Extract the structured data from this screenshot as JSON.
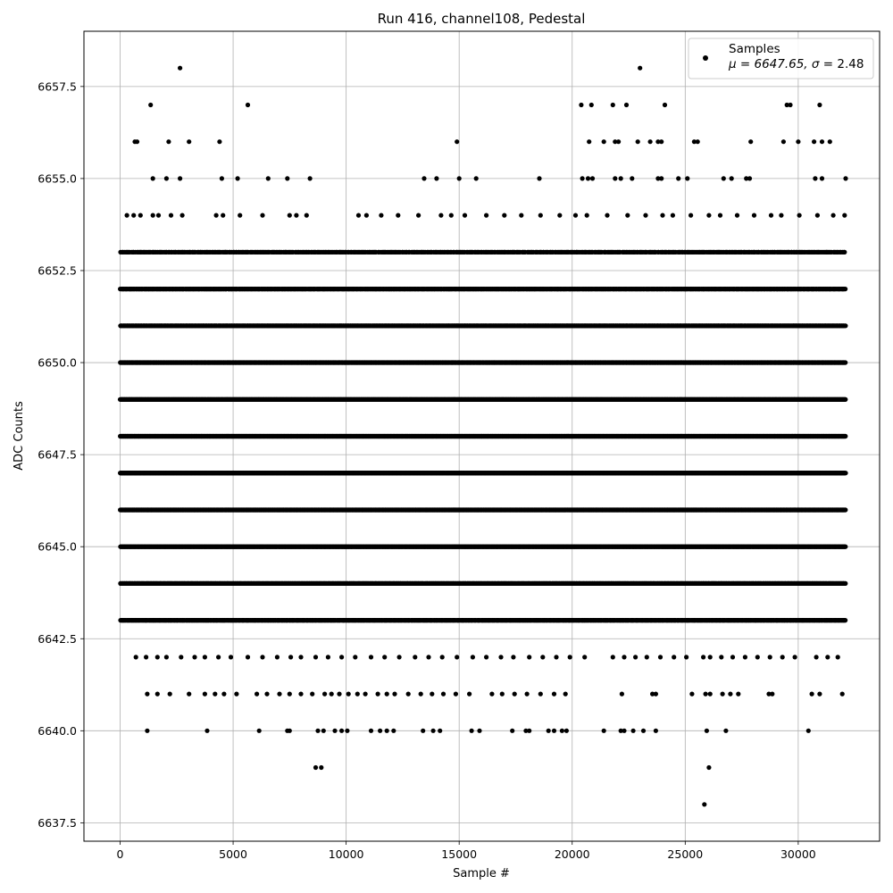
{
  "chart_data": {
    "type": "scatter",
    "title": "Run 416, channel108, Pedestal",
    "xlabel": "Sample #",
    "ylabel": "ADC Counts",
    "xlim": [
      -1600,
      33600
    ],
    "ylim": [
      6637.0,
      6659.0
    ],
    "xticks": [
      0,
      5000,
      10000,
      15000,
      20000,
      25000,
      30000
    ],
    "yticks": [
      6637.5,
      6640.0,
      6642.5,
      6645.0,
      6647.5,
      6650.0,
      6652.5,
      6655.0,
      6657.5
    ],
    "grid": true,
    "legend": {
      "placement": "top-right",
      "entry": "Samples",
      "stats_prefix": "μ = 6647.65, ",
      "stats_sigma": "σ",
      "stats_suffix": " = 2.48"
    },
    "series": [
      {
        "name": "Samples",
        "color": "#000000",
        "x_range": [
          0,
          32100
        ],
        "bands": [
          {
            "y": 6643,
            "count": 900,
            "xmax": 32100
          },
          {
            "y": 6644,
            "count": 1200,
            "xmax": 32100
          },
          {
            "y": 6645,
            "count": 1600,
            "xmax": 32100
          },
          {
            "y": 6646,
            "count": 2000,
            "xmax": 32100
          },
          {
            "y": 6647,
            "count": 2200,
            "xmax": 32100
          },
          {
            "y": 6648,
            "count": 2200,
            "xmax": 32100
          },
          {
            "y": 6649,
            "count": 2000,
            "xmax": 32100
          },
          {
            "y": 6650,
            "count": 1600,
            "xmax": 32100
          },
          {
            "y": 6651,
            "count": 1200,
            "xmax": 32100
          },
          {
            "y": 6652,
            "count": 900,
            "xmax": 32100
          },
          {
            "y": 6653,
            "count": 550,
            "xmax": 32100
          }
        ],
        "points": [
          [
            2650,
            6658
          ],
          [
            23000,
            6658
          ],
          [
            1350,
            6657
          ],
          [
            5650,
            6657
          ],
          [
            20400,
            6657
          ],
          [
            20850,
            6657
          ],
          [
            21800,
            6657
          ],
          [
            22400,
            6657
          ],
          [
            24100,
            6657
          ],
          [
            29500,
            6657
          ],
          [
            29650,
            6657
          ],
          [
            30950,
            6657
          ],
          [
            650,
            6656
          ],
          [
            750,
            6656
          ],
          [
            2150,
            6656
          ],
          [
            3050,
            6656
          ],
          [
            4400,
            6656
          ],
          [
            14900,
            6656
          ],
          [
            20750,
            6656
          ],
          [
            21400,
            6656
          ],
          [
            21900,
            6656
          ],
          [
            22050,
            6656
          ],
          [
            22900,
            6656
          ],
          [
            23450,
            6656
          ],
          [
            23800,
            6656
          ],
          [
            23950,
            6656
          ],
          [
            25400,
            6656
          ],
          [
            25550,
            6656
          ],
          [
            27900,
            6656
          ],
          [
            29350,
            6656
          ],
          [
            30000,
            6656
          ],
          [
            30700,
            6656
          ],
          [
            31050,
            6656
          ],
          [
            31400,
            6656
          ],
          [
            1450,
            6655
          ],
          [
            2050,
            6655
          ],
          [
            2650,
            6655
          ],
          [
            4500,
            6655
          ],
          [
            5200,
            6655
          ],
          [
            6550,
            6655
          ],
          [
            7400,
            6655
          ],
          [
            8400,
            6655
          ],
          [
            13450,
            6655
          ],
          [
            14000,
            6655
          ],
          [
            15000,
            6655
          ],
          [
            15750,
            6655
          ],
          [
            18550,
            6655
          ],
          [
            20450,
            6655
          ],
          [
            20700,
            6655
          ],
          [
            20900,
            6655
          ],
          [
            21900,
            6655
          ],
          [
            22150,
            6655
          ],
          [
            22650,
            6655
          ],
          [
            23800,
            6655
          ],
          [
            23950,
            6655
          ],
          [
            24700,
            6655
          ],
          [
            25100,
            6655
          ],
          [
            26700,
            6655
          ],
          [
            27050,
            6655
          ],
          [
            27700,
            6655
          ],
          [
            27850,
            6655
          ],
          [
            30750,
            6655
          ],
          [
            31050,
            6655
          ],
          [
            32100,
            6655
          ],
          [
            300,
            6654
          ],
          [
            600,
            6654
          ],
          [
            900,
            6654
          ],
          [
            1450,
            6654
          ],
          [
            1700,
            6654
          ],
          [
            2250,
            6654
          ],
          [
            2750,
            6654
          ],
          [
            4250,
            6654
          ],
          [
            4550,
            6654
          ],
          [
            5300,
            6654
          ],
          [
            6300,
            6654
          ],
          [
            7500,
            6654
          ],
          [
            7800,
            6654
          ],
          [
            8250,
            6654
          ],
          [
            10550,
            6654
          ],
          [
            10900,
            6654
          ],
          [
            11550,
            6654
          ],
          [
            12300,
            6654
          ],
          [
            13200,
            6654
          ],
          [
            14200,
            6654
          ],
          [
            14650,
            6654
          ],
          [
            15250,
            6654
          ],
          [
            16200,
            6654
          ],
          [
            17000,
            6654
          ],
          [
            17750,
            6654
          ],
          [
            18600,
            6654
          ],
          [
            19450,
            6654
          ],
          [
            20150,
            6654
          ],
          [
            20650,
            6654
          ],
          [
            21550,
            6654
          ],
          [
            22450,
            6654
          ],
          [
            23250,
            6654
          ],
          [
            24000,
            6654
          ],
          [
            24450,
            6654
          ],
          [
            25250,
            6654
          ],
          [
            26050,
            6654
          ],
          [
            26550,
            6654
          ],
          [
            27300,
            6654
          ],
          [
            28050,
            6654
          ],
          [
            28800,
            6654
          ],
          [
            29250,
            6654
          ],
          [
            30050,
            6654
          ],
          [
            30850,
            6654
          ],
          [
            31550,
            6654
          ],
          [
            32050,
            6654
          ],
          [
            700,
            6642
          ],
          [
            1150,
            6642
          ],
          [
            1650,
            6642
          ],
          [
            2050,
            6642
          ],
          [
            2700,
            6642
          ],
          [
            3300,
            6642
          ],
          [
            3750,
            6642
          ],
          [
            4350,
            6642
          ],
          [
            4900,
            6642
          ],
          [
            5650,
            6642
          ],
          [
            6300,
            6642
          ],
          [
            6950,
            6642
          ],
          [
            7550,
            6642
          ],
          [
            8000,
            6642
          ],
          [
            8650,
            6642
          ],
          [
            9200,
            6642
          ],
          [
            9800,
            6642
          ],
          [
            10400,
            6642
          ],
          [
            11100,
            6642
          ],
          [
            11700,
            6642
          ],
          [
            12350,
            6642
          ],
          [
            13050,
            6642
          ],
          [
            13650,
            6642
          ],
          [
            14250,
            6642
          ],
          [
            14900,
            6642
          ],
          [
            15600,
            6642
          ],
          [
            16200,
            6642
          ],
          [
            16850,
            6642
          ],
          [
            17400,
            6642
          ],
          [
            18100,
            6642
          ],
          [
            18700,
            6642
          ],
          [
            19300,
            6642
          ],
          [
            19900,
            6642
          ],
          [
            20550,
            6642
          ],
          [
            21800,
            6642
          ],
          [
            22300,
            6642
          ],
          [
            22800,
            6642
          ],
          [
            23300,
            6642
          ],
          [
            23900,
            6642
          ],
          [
            24500,
            6642
          ],
          [
            25050,
            6642
          ],
          [
            25800,
            6642
          ],
          [
            26100,
            6642
          ],
          [
            26600,
            6642
          ],
          [
            27100,
            6642
          ],
          [
            27650,
            6642
          ],
          [
            28200,
            6642
          ],
          [
            28750,
            6642
          ],
          [
            29300,
            6642
          ],
          [
            29850,
            6642
          ],
          [
            30800,
            6642
          ],
          [
            31300,
            6642
          ],
          [
            31750,
            6642
          ],
          [
            1200,
            6641
          ],
          [
            1650,
            6641
          ],
          [
            2200,
            6641
          ],
          [
            3050,
            6641
          ],
          [
            3750,
            6641
          ],
          [
            4200,
            6641
          ],
          [
            4600,
            6641
          ],
          [
            5150,
            6641
          ],
          [
            6050,
            6641
          ],
          [
            6500,
            6641
          ],
          [
            7050,
            6641
          ],
          [
            7500,
            6641
          ],
          [
            8000,
            6641
          ],
          [
            8500,
            6641
          ],
          [
            9050,
            6641
          ],
          [
            9350,
            6641
          ],
          [
            9700,
            6641
          ],
          [
            10100,
            6641
          ],
          [
            10500,
            6641
          ],
          [
            10850,
            6641
          ],
          [
            11400,
            6641
          ],
          [
            11800,
            6641
          ],
          [
            12150,
            6641
          ],
          [
            12750,
            6641
          ],
          [
            13300,
            6641
          ],
          [
            13800,
            6641
          ],
          [
            14300,
            6641
          ],
          [
            14850,
            6641
          ],
          [
            15450,
            6641
          ],
          [
            16450,
            6641
          ],
          [
            16900,
            6641
          ],
          [
            17450,
            6641
          ],
          [
            18000,
            6641
          ],
          [
            18600,
            6641
          ],
          [
            19200,
            6641
          ],
          [
            19700,
            6641
          ],
          [
            22200,
            6641
          ],
          [
            23550,
            6641
          ],
          [
            23700,
            6641
          ],
          [
            25300,
            6641
          ],
          [
            25900,
            6641
          ],
          [
            26100,
            6641
          ],
          [
            26650,
            6641
          ],
          [
            27000,
            6641
          ],
          [
            27350,
            6641
          ],
          [
            28700,
            6641
          ],
          [
            28850,
            6641
          ],
          [
            30600,
            6641
          ],
          [
            30950,
            6641
          ],
          [
            31950,
            6641
          ],
          [
            1200,
            6640
          ],
          [
            3850,
            6640
          ],
          [
            6150,
            6640
          ],
          [
            7400,
            6640
          ],
          [
            7500,
            6640
          ],
          [
            8750,
            6640
          ],
          [
            9000,
            6640
          ],
          [
            9500,
            6640
          ],
          [
            9800,
            6640
          ],
          [
            10050,
            6640
          ],
          [
            11100,
            6640
          ],
          [
            11500,
            6640
          ],
          [
            11800,
            6640
          ],
          [
            12100,
            6640
          ],
          [
            13400,
            6640
          ],
          [
            13850,
            6640
          ],
          [
            14150,
            6640
          ],
          [
            15550,
            6640
          ],
          [
            15900,
            6640
          ],
          [
            17350,
            6640
          ],
          [
            17950,
            6640
          ],
          [
            18100,
            6640
          ],
          [
            18950,
            6640
          ],
          [
            19200,
            6640
          ],
          [
            19550,
            6640
          ],
          [
            19750,
            6640
          ],
          [
            21400,
            6640
          ],
          [
            22150,
            6640
          ],
          [
            22300,
            6640
          ],
          [
            22700,
            6640
          ],
          [
            23150,
            6640
          ],
          [
            23700,
            6640
          ],
          [
            25950,
            6640
          ],
          [
            26800,
            6640
          ],
          [
            30450,
            6640
          ],
          [
            8650,
            6639
          ],
          [
            8900,
            6639
          ],
          [
            26050,
            6639
          ],
          [
            25850,
            6638
          ]
        ]
      }
    ]
  }
}
